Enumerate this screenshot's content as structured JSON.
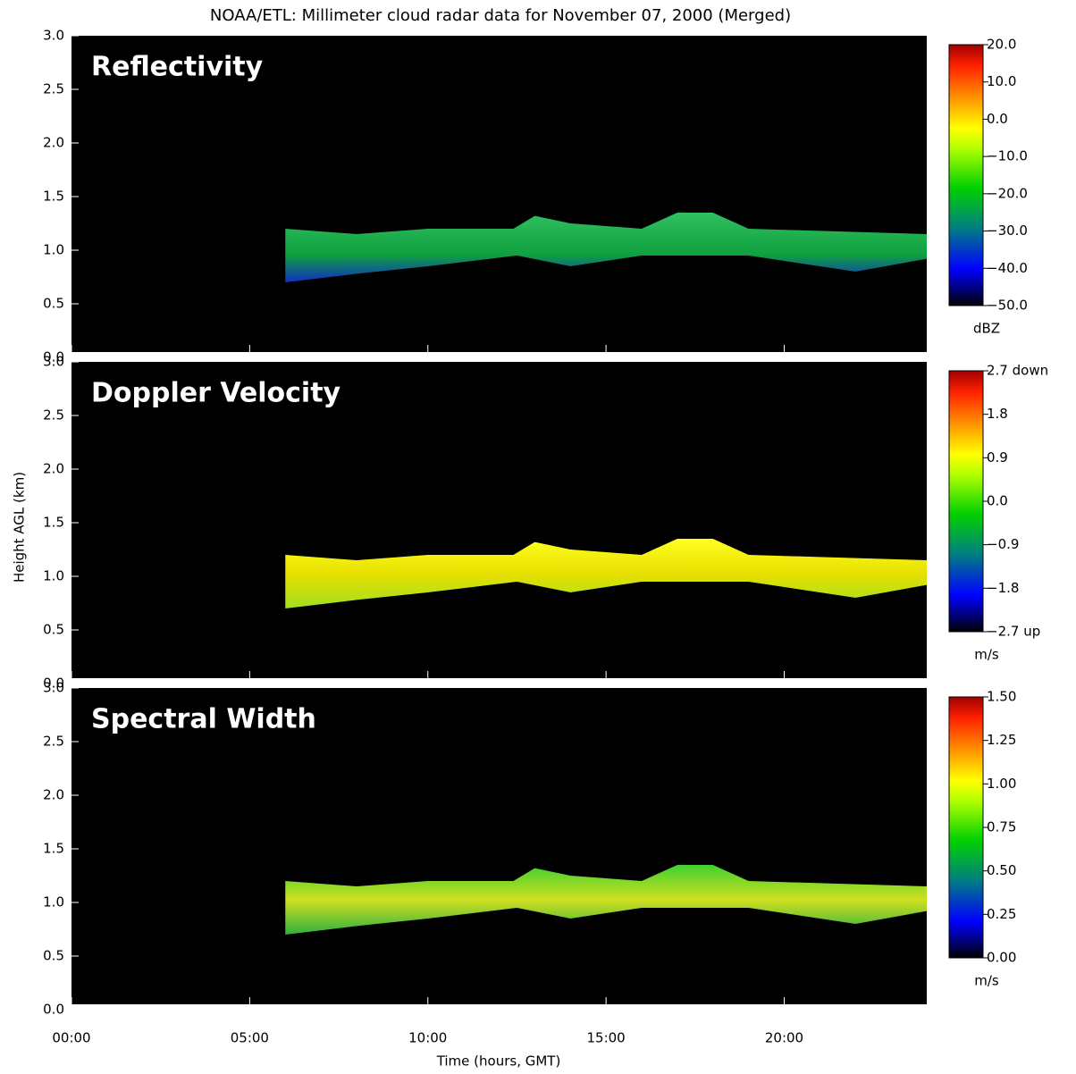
{
  "title": "NOAA/ETL: Millimeter cloud radar data for November 07, 2000 (Merged)",
  "ylabel": "Height AGL (km)",
  "xlabel": "Time (hours, GMT)",
  "chart_data": [
    {
      "type": "heatmap",
      "title": "Reflectivity",
      "ylim": [
        0,
        3
      ],
      "yticks": [
        {
          "value": 0,
          "label": "0.0"
        },
        0.5,
        {
          "value": 1,
          "label": "1.0"
        },
        1.5,
        {
          "value": 2,
          "label": "2.0"
        },
        2.5,
        {
          "value": 3,
          "label": "3.0"
        }
      ],
      "colorbar": {
        "label": "dBZ",
        "lim": [
          -50,
          20
        ],
        "ticks": [
          {
            "value": 20,
            "label": "20.0"
          },
          {
            "value": 10,
            "label": "10.0"
          },
          {
            "value": 0,
            "label": "0.0"
          },
          {
            "value": -10,
            "label": "−10.0"
          },
          {
            "value": -20,
            "label": "−20.0"
          },
          {
            "value": -30,
            "label": "−30.0"
          },
          {
            "value": -40,
            "label": "−40.0"
          },
          {
            "value": -50,
            "label": "−50.0"
          }
        ]
      }
    },
    {
      "type": "heatmap",
      "title": "Doppler Velocity",
      "ylim": [
        0,
        3
      ],
      "yticks": [
        {
          "value": 0,
          "label": "0.0"
        },
        0.5,
        {
          "value": 1,
          "label": "1.0"
        },
        1.5,
        {
          "value": 2,
          "label": "2.0"
        },
        2.5,
        {
          "value": 3,
          "label": "3.0"
        }
      ],
      "colorbar": {
        "label": "m/s",
        "lim": [
          -2.7,
          2.7
        ],
        "ticks": [
          {
            "value": 2.7,
            "label": "2.7 down"
          },
          1.8,
          0.9,
          {
            "value": 0,
            "label": "0.0"
          },
          {
            "value": -0.9,
            "label": "−0.9"
          },
          {
            "value": -1.8,
            "label": "−1.8"
          },
          {
            "value": -2.7,
            "label": "−2.7 up"
          }
        ]
      }
    },
    {
      "type": "heatmap",
      "title": "Spectral Width",
      "ylim": [
        0,
        3
      ],
      "yticks": [
        {
          "value": 0,
          "label": "0.0"
        },
        0.5,
        {
          "value": 1,
          "label": "1.0"
        },
        1.5,
        {
          "value": 2,
          "label": "2.0"
        },
        2.5,
        {
          "value": 3,
          "label": "3.0"
        }
      ],
      "xlim": [
        0,
        24
      ],
      "xticks": [
        {
          "value": 0,
          "label": "00:00"
        },
        {
          "value": 5,
          "label": "05:00"
        },
        {
          "value": 10,
          "label": "10:00"
        },
        {
          "value": 15,
          "label": "15:00"
        },
        {
          "value": 20,
          "label": "20:00"
        }
      ],
      "colorbar": {
        "label": "m/s",
        "lim": [
          0,
          1.5
        ],
        "ticks": [
          {
            "value": 1.5,
            "label": "1.50"
          },
          {
            "value": 1.25,
            "label": "1.25"
          },
          {
            "value": 1,
            "label": "1.00"
          },
          {
            "value": 0.75,
            "label": "0.75"
          },
          {
            "value": 0.5,
            "label": "0.50"
          },
          {
            "value": 0.25,
            "label": "0.25"
          },
          {
            "value": 0,
            "label": "0.00"
          }
        ]
      }
    }
  ]
}
